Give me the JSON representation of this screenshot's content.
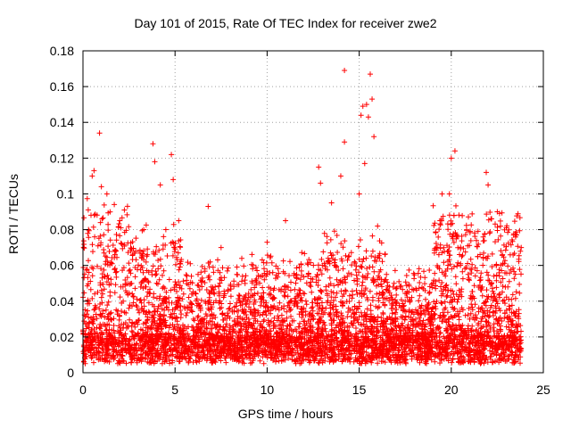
{
  "chart_data": {
    "type": "scatter",
    "title": "Day 101 of 2015, Rate Of TEC Index for receiver zwe2",
    "xlabel": "GPS time / hours",
    "ylabel": "ROTI / TECUs",
    "xlim": [
      0,
      25
    ],
    "ylim": [
      0,
      0.18
    ],
    "x_ticks": [
      "0",
      "5",
      "10",
      "15",
      "20",
      "25"
    ],
    "y_ticks": [
      "0",
      "0.02",
      "0.04",
      "0.06",
      "0.08",
      "0.1",
      "0.12",
      "0.14",
      "0.16",
      "0.18"
    ],
    "grid": true,
    "marker": "+",
    "color": "#ff0000",
    "series": [
      {
        "name": "ROTI",
        "points": [
          [
            0.3,
            0.08
          ],
          [
            0.5,
            0.11
          ],
          [
            0.6,
            0.113
          ],
          [
            0.9,
            0.134
          ],
          [
            1.0,
            0.104
          ],
          [
            1.3,
            0.1
          ],
          [
            2.0,
            0.085
          ],
          [
            3.3,
            0.08
          ],
          [
            3.8,
            0.128
          ],
          [
            3.9,
            0.118
          ],
          [
            4.2,
            0.105
          ],
          [
            4.5,
            0.08
          ],
          [
            4.8,
            0.122
          ],
          [
            4.9,
            0.108
          ],
          [
            5.2,
            0.085
          ],
          [
            6.8,
            0.093
          ],
          [
            7.5,
            0.07
          ],
          [
            10.0,
            0.073
          ],
          [
            11.0,
            0.085
          ],
          [
            12.8,
            0.115
          ],
          [
            12.9,
            0.106
          ],
          [
            13.5,
            0.095
          ],
          [
            14.0,
            0.11
          ],
          [
            14.2,
            0.169
          ],
          [
            14.2,
            0.129
          ],
          [
            15.0,
            0.1
          ],
          [
            15.1,
            0.144
          ],
          [
            15.2,
            0.149
          ],
          [
            15.4,
            0.15
          ],
          [
            15.5,
            0.143
          ],
          [
            15.6,
            0.167
          ],
          [
            15.7,
            0.153
          ],
          [
            15.8,
            0.132
          ],
          [
            15.3,
            0.117
          ],
          [
            16.0,
            0.082
          ],
          [
            19.5,
            0.1
          ],
          [
            19.9,
            0.1
          ],
          [
            20.0,
            0.12
          ],
          [
            20.2,
            0.124
          ],
          [
            21.9,
            0.112
          ],
          [
            22.0,
            0.105
          ],
          [
            22.5,
            0.09
          ],
          [
            23.8,
            0.07
          ],
          [
            0.2,
            0.02
          ],
          [
            0.8,
            0.045
          ],
          [
            1.5,
            0.03
          ],
          [
            2.5,
            0.012
          ],
          [
            3.0,
            0.035
          ],
          [
            4.0,
            0.05
          ],
          [
            5.5,
            0.02
          ],
          [
            6.0,
            0.03
          ],
          [
            7.0,
            0.045
          ],
          [
            8.0,
            0.015
          ],
          [
            9.0,
            0.03
          ],
          [
            10.5,
            0.02
          ],
          [
            11.5,
            0.04
          ],
          [
            12.0,
            0.015
          ],
          [
            13.0,
            0.06
          ],
          [
            14.5,
            0.035
          ],
          [
            16.5,
            0.025
          ],
          [
            17.5,
            0.04
          ],
          [
            18.5,
            0.02
          ],
          [
            19.0,
            0.05
          ],
          [
            20.5,
            0.06
          ],
          [
            21.0,
            0.03
          ],
          [
            22.8,
            0.04
          ],
          [
            23.5,
            0.02
          ]
        ]
      }
    ]
  }
}
